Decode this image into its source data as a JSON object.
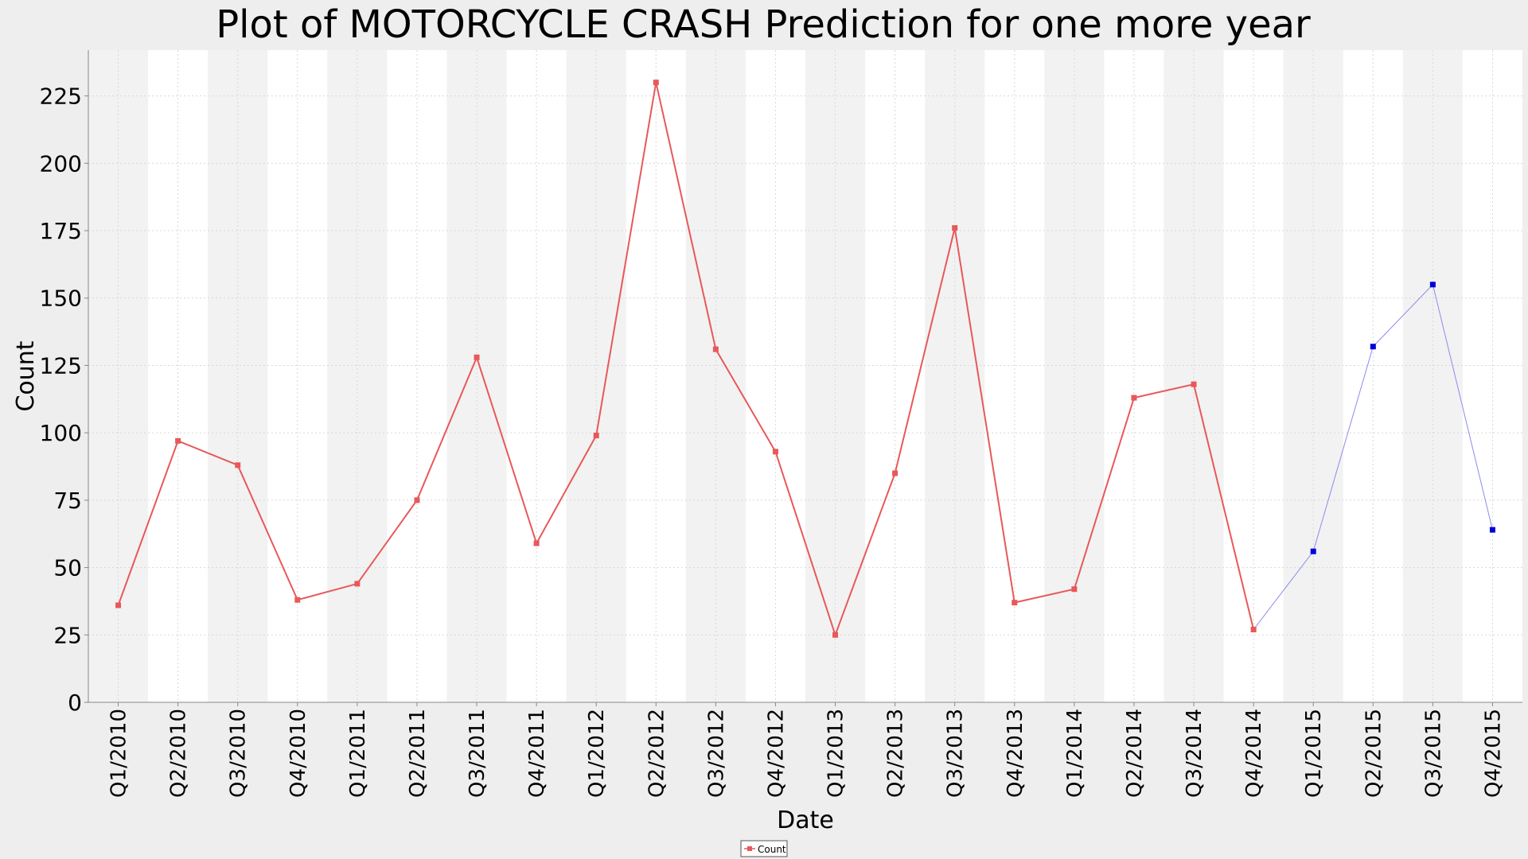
{
  "chart_data": {
    "type": "line",
    "title": "Plot of MOTORCYCLE CRASH Prediction for one more year",
    "xlabel": "Date",
    "ylabel": "Count",
    "ylim": [
      0,
      242
    ],
    "yticks": [
      "0",
      "25",
      "50",
      "75",
      "100",
      "125",
      "150",
      "175",
      "200",
      "225"
    ],
    "categories": [
      "Q1/2010",
      "Q2/2010",
      "Q3/2010",
      "Q4/2010",
      "Q1/2011",
      "Q2/2011",
      "Q3/2011",
      "Q4/2011",
      "Q1/2012",
      "Q2/2012",
      "Q3/2012",
      "Q4/2012",
      "Q1/2013",
      "Q2/2013",
      "Q3/2013",
      "Q4/2013",
      "Q1/2014",
      "Q2/2014",
      "Q3/2014",
      "Q4/2014",
      "Q1/2015",
      "Q2/2015",
      "Q3/2015",
      "Q4/2015"
    ],
    "series": [
      {
        "name": "Count",
        "color": "#e8585a",
        "values": [
          36,
          97,
          88,
          38,
          44,
          75,
          128,
          59,
          99,
          230,
          131,
          93,
          25,
          85,
          176,
          37,
          42,
          113,
          118,
          27,
          null,
          null,
          null,
          null
        ]
      },
      {
        "color": "#0000dd",
        "line_color": "#8b8bee",
        "values": [
          null,
          null,
          null,
          null,
          null,
          null,
          null,
          null,
          null,
          null,
          null,
          null,
          null,
          null,
          null,
          null,
          null,
          null,
          null,
          27,
          56,
          132,
          155,
          64
        ]
      }
    ],
    "grid": true,
    "alternating_column_bands": true,
    "legend": {
      "position": "bottom-center",
      "entries": [
        "Count"
      ]
    }
  }
}
